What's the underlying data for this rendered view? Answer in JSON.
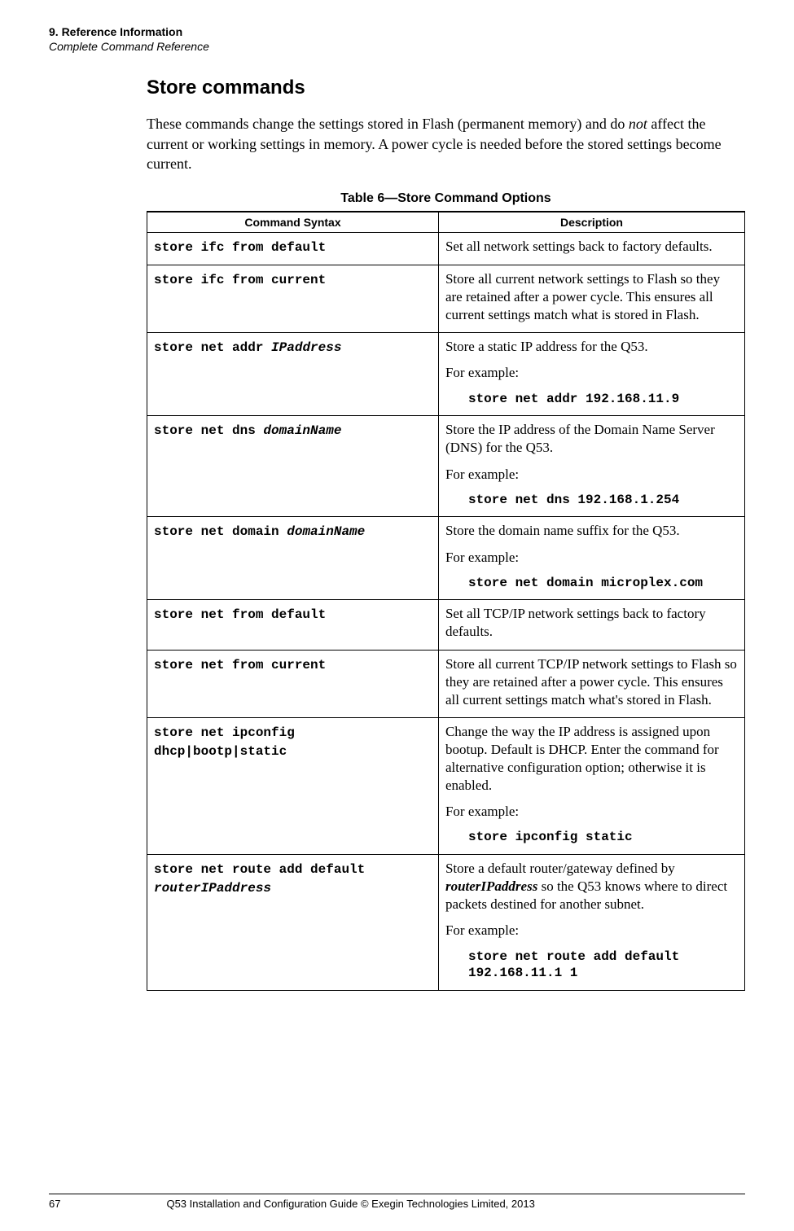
{
  "running_head": {
    "line1": "9. Reference Information",
    "line2": "Complete Command Reference"
  },
  "section_title": "Store commands",
  "intro_pre": "These commands change the settings stored in Flash (permanent memory) and do ",
  "intro_em": "not",
  "intro_post": " affect the current or working settings in memory. A power cycle is needed before the stored settings become current.",
  "table_caption": "Table 6—Store Command Options",
  "th_syntax": "Command Syntax",
  "th_desc": "Description",
  "rows": {
    "r0": {
      "syntax_plain": "store ifc from default",
      "desc": "Set all network settings back to factory defaults."
    },
    "r1": {
      "syntax_plain": "store ifc from current",
      "desc": "Store all current network settings to Flash so they are retained after a power cycle. This ensures all current settings match what is stored in Flash."
    },
    "r2": {
      "syntax_cmd": "store net addr ",
      "syntax_arg": "IPaddress",
      "desc": "Store a static IP address for the Q53.",
      "example_label": "For example:",
      "example": "store net addr 192.168.11.9"
    },
    "r3": {
      "syntax_cmd": "store net dns ",
      "syntax_arg": "domainName",
      "desc": "Store the IP address of the Domain Name Server (DNS) for the Q53.",
      "example_label": "For example:",
      "example": "store net dns 192.168.1.254"
    },
    "r4": {
      "syntax_cmd": "store net domain ",
      "syntax_arg": "domainName",
      "desc": "Store the domain name suffix for the Q53.",
      "example_label": "For example:",
      "example": "store net domain microplex.com"
    },
    "r5": {
      "syntax_plain": "store net from default",
      "desc": "Set all TCP/IP network settings back to factory defaults."
    },
    "r6": {
      "syntax_plain": "store net from current",
      "desc": "Store all current TCP/IP network settings to Flash so they are retained after a power cycle. This ensures all current settings match what's stored in Flash."
    },
    "r7": {
      "syntax_plain": "store net ipconfig dhcp|bootp|static",
      "desc": "Change the way the IP address is assigned upon bootup. Default is DHCP. Enter the command for alternative configuration option; otherwise it is enabled.",
      "example_label": "For example:",
      "example": "store ipconfig static"
    },
    "r8": {
      "syntax_cmd": "store net route add default ",
      "syntax_arg": "routerIPaddress",
      "desc_pre": "Store a default router/gateway defined by ",
      "desc_bi": "routerIPaddress",
      "desc_post": " so the Q53 knows where to direct packets destined for another subnet.",
      "example_label": "For example:",
      "example": "store net route add default 192.168.11.1 1"
    }
  },
  "footer": {
    "page": "67",
    "text": "Q53 Installation and Configuration Guide  © Exegin Technologies Limited, 2013"
  }
}
